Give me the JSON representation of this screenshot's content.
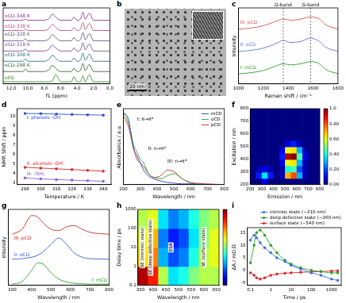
{
  "chart_data": [
    {
      "panel": "a",
      "type": "line",
      "x_label": "f1 (ppm)",
      "x": [
        13,
        12,
        11,
        10.6,
        10.3,
        10,
        9,
        8,
        7.4,
        7,
        6.6,
        6,
        5,
        4.7,
        4.4,
        4,
        3.6,
        3.3,
        3,
        2.5,
        2,
        1,
        0
      ],
      "xlim": [
        13,
        0
      ],
      "xticks": [
        {
          "value": 12,
          "label": "12.0"
        },
        {
          "value": 10,
          "label": "10.0"
        },
        {
          "value": 8,
          "label": "8.0"
        },
        {
          "value": 6,
          "label": "6.0"
        },
        {
          "value": 4,
          "label": "4.0"
        },
        {
          "value": 2,
          "label": "2.0"
        },
        {
          "value": 0,
          "label": "0.0"
        }
      ],
      "ylim": [
        -0.2,
        7.2
      ],
      "tick_labels": "x",
      "grid": false,
      "legend": "inline",
      "series": [
        {
          "name": "oCD-348 K",
          "color": "#8e3b8e",
          "values": [
            6,
            6,
            6,
            6,
            6.12,
            6,
            6,
            6,
            6.2,
            6.6,
            6.3,
            6,
            6,
            6,
            6.3,
            6,
            6.1,
            6.8,
            6.1,
            6.7,
            6,
            6,
            6
          ]
        },
        {
          "name": "oCD-338 K",
          "color": "#c4508a",
          "values": [
            5,
            5,
            5,
            5,
            5.15,
            5,
            5,
            5,
            5.2,
            5.6,
            5.3,
            5,
            5,
            5,
            5.3,
            5,
            5.1,
            5.8,
            5.1,
            5.7,
            5,
            5,
            5
          ]
        },
        {
          "name": "oCD-328 K",
          "color": "#5d5d7a",
          "values": [
            4,
            4,
            4,
            4,
            4.18,
            4,
            4,
            4,
            4.2,
            4.6,
            4.3,
            4,
            4,
            4,
            4.3,
            4,
            4.1,
            4.8,
            4.1,
            4.7,
            4,
            4,
            4
          ]
        },
        {
          "name": "oCD-318 K",
          "color": "#7b4fa0",
          "values": [
            3,
            3,
            3,
            3,
            3.2,
            3,
            3,
            3,
            3.2,
            3.6,
            3.3,
            3,
            3,
            3,
            3.3,
            3,
            3.1,
            3.8,
            3.1,
            3.7,
            3,
            3,
            3
          ]
        },
        {
          "name": "oCD-308 K",
          "color": "#2f6f8f",
          "values": [
            2,
            2,
            2,
            2,
            2.22,
            2,
            2,
            2,
            2.2,
            2.6,
            2.3,
            2,
            2,
            2,
            2.3,
            2,
            2.1,
            2.8,
            2.1,
            2.7,
            2,
            2,
            2
          ]
        },
        {
          "name": "oCD-298 K",
          "color": "#3d6b2e",
          "values": [
            1,
            1,
            1,
            1,
            1.25,
            1,
            1,
            1,
            1.2,
            1.6,
            1.3,
            1,
            1,
            1,
            1.3,
            1,
            1.1,
            1.8,
            1.1,
            1.7,
            1,
            1,
            1
          ]
        },
        {
          "name": "oPD",
          "color": "#3a8d2c",
          "values": [
            0,
            0,
            0,
            0,
            0,
            0,
            0,
            0,
            0,
            0.1,
            0.7,
            0,
            0,
            0,
            0.5,
            0,
            0,
            0.6,
            0,
            0.7,
            0,
            0,
            0
          ]
        }
      ]
    },
    {
      "panel": "c",
      "type": "line",
      "x_label": "Raman shift / cm⁻¹",
      "y_label": "Intensity",
      "x": [
        1000,
        1100,
        1200,
        1300,
        1360,
        1420,
        1500,
        1580,
        1650,
        1700,
        1800
      ],
      "xlim": [
        1000,
        1800
      ],
      "xticks": [
        1000,
        1200,
        1400,
        1600,
        1800
      ],
      "ylim": [
        -0.4,
        3
      ],
      "tick_labels": "x",
      "grid": false,
      "legend": "inline",
      "vlines": [
        {
          "x": 1360,
          "label": "D-band"
        },
        {
          "x": 1580,
          "label": "G-band"
        }
      ],
      "series": [
        {
          "name": "III: pCD",
          "color": "#d9534f",
          "values": [
            2.05,
            2.1,
            2.2,
            2.4,
            2.5,
            2.45,
            2.5,
            2.6,
            2.5,
            2.25,
            2.05
          ]
        },
        {
          "name": "II: oCD",
          "color": "#5b7bd5",
          "values": [
            1.05,
            1.1,
            1.2,
            1.4,
            1.55,
            1.45,
            1.5,
            1.65,
            1.5,
            1.25,
            1.05
          ]
        },
        {
          "name": "I: mCD",
          "color": "#2ca02c",
          "values": [
            0.05,
            0.1,
            0.2,
            0.4,
            0.5,
            0.45,
            0.5,
            0.6,
            0.5,
            0.25,
            0.05
          ]
        }
      ]
    },
    {
      "panel": "d",
      "type": "line",
      "x_label": "Temperature / K",
      "y_label": "NMR Shift / ppm",
      "x": [
        298,
        308,
        318,
        328,
        338,
        348
      ],
      "xlim": [
        293,
        353
      ],
      "xticks": [
        298,
        308,
        318,
        328,
        338,
        348
      ],
      "ylim": [
        2.8,
        10.8
      ],
      "yticks": [
        3,
        4,
        5,
        6,
        7,
        8,
        9,
        10
      ],
      "grid": false,
      "legend": "inline",
      "marker": "circle",
      "line_style": "solid",
      "series": [
        {
          "name": "I: phenols -OH",
          "color": "#2a4bd7",
          "values": [
            10.3,
            10.27,
            10.23,
            10.19,
            10.15,
            10.12
          ]
        },
        {
          "name": "II: alcohols -OH",
          "color": "#d62728",
          "values": [
            4.62,
            4.54,
            4.46,
            4.38,
            4.3,
            4.22
          ]
        },
        {
          "name": "III: -NH₂",
          "color": "#8a5cd6",
          "values": [
            3.5,
            3.4,
            3.33,
            3.27,
            3.21,
            3.15
          ]
        }
      ]
    },
    {
      "panel": "e",
      "type": "line",
      "x_label": "Wavelength / nm",
      "y_label": "Absorbance / a.u.",
      "x": [
        200,
        230,
        260,
        280,
        300,
        320,
        350,
        380,
        420,
        460,
        500,
        550,
        600,
        700,
        800
      ],
      "xlim": [
        200,
        800
      ],
      "xticks": [
        200,
        300,
        400,
        500,
        600,
        700,
        800
      ],
      "ylim": [
        0,
        1.05
      ],
      "tick_labels": "x",
      "grid": false,
      "legend": "upper right",
      "annotations": [
        {
          "text": "I: π→π*",
          "x": 330,
          "y": 0.9
        },
        {
          "text": "II: n→π*",
          "x": 400,
          "y": 0.5
        },
        {
          "text": "III: n→π*",
          "x": 520,
          "y": 0.32
        }
      ],
      "series": [
        {
          "name": "mCD",
          "color": "#1f3fbf",
          "values": [
            1.0,
            0.9,
            0.5,
            0.4,
            0.3,
            0.2,
            0.12,
            0.08,
            0.05,
            0.03,
            0.02,
            0.01,
            0.01,
            0,
            0
          ]
        },
        {
          "name": "oCD",
          "color": "#2ca02c",
          "values": [
            1.0,
            0.85,
            0.55,
            0.45,
            0.35,
            0.3,
            0.15,
            0.1,
            0.08,
            0.12,
            0.15,
            0.08,
            0.02,
            0,
            0
          ]
        },
        {
          "name": "pCD",
          "color": "#d62728",
          "values": [
            0.95,
            0.8,
            0.5,
            0.35,
            0.3,
            0.25,
            0.15,
            0.1,
            0.12,
            0.2,
            0.18,
            0.08,
            0.03,
            0.01,
            0
          ]
        }
      ]
    },
    {
      "panel": "f",
      "type": "heatmap",
      "x_label": "Emission / nm",
      "y_label": "Excitation / nm",
      "xlim": [
        200,
        800
      ],
      "xticks": [
        200,
        300,
        400,
        500,
        600,
        700,
        800
      ],
      "ylim": [
        200,
        800
      ],
      "yticks": [
        200,
        300,
        400,
        500,
        600,
        700,
        800
      ],
      "x_edges": [
        200,
        250,
        300,
        350,
        400,
        450,
        500,
        550,
        600,
        650,
        700,
        750,
        800
      ],
      "y_edges": [
        200,
        250,
        300,
        350,
        400,
        450,
        500,
        550,
        600,
        650,
        700,
        750,
        800
      ],
      "cells": [
        [
          0,
          0,
          0.1,
          0,
          0,
          0,
          0,
          0,
          0,
          0,
          0,
          0
        ],
        [
          0,
          0.15,
          0.35,
          0.15,
          0,
          0.05,
          0.7,
          0.8,
          0.3,
          0.05,
          0,
          0
        ],
        [
          0,
          0.05,
          0.1,
          0.05,
          0,
          0.05,
          0.4,
          0.45,
          0.2,
          0.05,
          0,
          0
        ],
        [
          0,
          0,
          0,
          0,
          0,
          0.1,
          0.6,
          0.65,
          0.3,
          0.05,
          0,
          0
        ],
        [
          0,
          0,
          0,
          0,
          0,
          0.15,
          0.95,
          1,
          0.45,
          0.1,
          0,
          0
        ],
        [
          0,
          0,
          0,
          0,
          0,
          0.1,
          0.6,
          0.65,
          0.3,
          0.05,
          0,
          0
        ],
        [
          0,
          0,
          0,
          0,
          0,
          0,
          0.1,
          0.15,
          0.05,
          0,
          0,
          0
        ],
        [
          0,
          0,
          0,
          0,
          0,
          0,
          0,
          0,
          0,
          0,
          0,
          0
        ],
        [
          0,
          0,
          0,
          0,
          0,
          0,
          0,
          0,
          0,
          0,
          0,
          0
        ],
        [
          0,
          0,
          0,
          0,
          0,
          0,
          0,
          0,
          0,
          0,
          0,
          0
        ],
        [
          0,
          0,
          0,
          0,
          0,
          0,
          0,
          0,
          0,
          0,
          0,
          0
        ],
        [
          0,
          0,
          0,
          0,
          0,
          0,
          0,
          0,
          0,
          0,
          0,
          0
        ]
      ],
      "zlim": [
        0,
        1
      ],
      "colorbar_ticks": [
        {
          "value": 0,
          "label": "0.00"
        },
        {
          "value": 0.2,
          "label": "0.20"
        },
        {
          "value": 0.4,
          "label": "0.40"
        },
        {
          "value": 0.6,
          "label": "0.60"
        },
        {
          "value": 0.8,
          "label": "0.80"
        },
        {
          "value": 1,
          "label": "1.0"
        }
      ]
    },
    {
      "panel": "g",
      "type": "line",
      "x_label": "Wavelength / nm",
      "y_label": "Intensity",
      "x": [
        300,
        350,
        400,
        430,
        460,
        500,
        540,
        580,
        620,
        660,
        700,
        800
      ],
      "xlim": [
        280,
        800
      ],
      "xticks": [
        300,
        400,
        500,
        600,
        700,
        800
      ],
      "ylim": [
        -0.05,
        3
      ],
      "tick_labels": "x",
      "grid": false,
      "legend": "inline",
      "series": [
        {
          "name": "III: pCD",
          "color": "#d62728",
          "values": [
            2,
            2.2,
            2.75,
            2.7,
            2.45,
            2.2,
            2.15,
            2.3,
            2.35,
            2.2,
            2.08,
            2
          ]
        },
        {
          "name": "II: oCD",
          "color": "#3b5bd5",
          "values": [
            1,
            1.02,
            1.08,
            1.15,
            1.3,
            1.6,
            1.85,
            1.6,
            1.25,
            1.08,
            1.02,
            1
          ]
        },
        {
          "name": "I: mCD",
          "color": "#2ca02c",
          "values": [
            0,
            0.1,
            0.55,
            0.85,
            0.8,
            0.45,
            0.2,
            0.08,
            0.03,
            0.01,
            0,
            0
          ]
        }
      ]
    },
    {
      "panel": "h",
      "type": "heatmap",
      "log": "y",
      "x_label": "Wavelength / nm",
      "y_label": "Delay time / ps",
      "xlim": [
        340,
        660
      ],
      "xticks": [
        350,
        400,
        450,
        500,
        550,
        600,
        650
      ],
      "ylim": [
        0.1,
        1000
      ],
      "yticks": [
        0.1,
        1,
        10,
        100,
        1000
      ],
      "x_edges": [
        340,
        380,
        420,
        460,
        500,
        540,
        580,
        620,
        660
      ],
      "y_edges": [
        0.1,
        1,
        10,
        100,
        1000
      ],
      "cells": [
        [
          0.9,
          0.7,
          0.1,
          -0.3,
          -0.2,
          0,
          0.1,
          0.1
        ],
        [
          0.3,
          0.5,
          -0.4,
          -0.6,
          -0.5,
          -0.2,
          0.1,
          0.2
        ],
        [
          0.2,
          0.4,
          -0.5,
          -0.7,
          -0.6,
          -0.3,
          0,
          0.2
        ],
        [
          0.1,
          0.2,
          -0.3,
          -0.5,
          -0.4,
          -0.2,
          0,
          0.1
        ]
      ],
      "zlim": [
        -1,
        1
      ],
      "annotations": [
        {
          "text": "SE (intrinsic state)",
          "x": 358,
          "y": 10
        },
        {
          "text": "SE (deep defective state)",
          "x": 390,
          "y": 10
        },
        {
          "text": "ESA",
          "x": 470,
          "y": 10
        },
        {
          "text": "SE (surface state)",
          "x": 600,
          "y": 10
        }
      ]
    },
    {
      "panel": "i",
      "type": "scatter",
      "log": "x",
      "x_label": "Time / ps",
      "y_label": "ΔA / mO.D.",
      "x": [
        0.1,
        0.15,
        0.2,
        0.3,
        0.5,
        1,
        2,
        5,
        10,
        30,
        100,
        300,
        1000,
        2000
      ],
      "xlim": [
        0.07,
        3000
      ],
      "xticks": [
        0.1,
        1,
        10,
        100,
        1000
      ],
      "ylim": [
        -6,
        17
      ],
      "yticks": [
        -5,
        0,
        5,
        10,
        15
      ],
      "grid": false,
      "legend": "top",
      "marker": "circle",
      "line_style": "solid",
      "series": [
        {
          "name": "intrinsic state (~310 nm)",
          "color": "#3b6fd8",
          "values": [
            12,
            14,
            13,
            11,
            9,
            7,
            5,
            3.5,
            2,
            0.5,
            -1,
            -2,
            -3.5,
            -4
          ]
        },
        {
          "name": "deep defective state (~360 nm)",
          "color": "#2ca02c",
          "values": [
            3,
            10,
            15,
            16,
            14,
            10,
            7,
            4,
            2.5,
            1,
            0,
            -0.5,
            -1,
            -1
          ]
        },
        {
          "name": "surface state (~540 nm)",
          "color": "#d62728",
          "values": [
            -1,
            -2,
            -3,
            -3.5,
            -3,
            -2,
            -1.5,
            -1.2,
            -1,
            -0.8,
            -0.6,
            -0.5,
            -0.3,
            -0.2
          ]
        }
      ]
    }
  ],
  "image_panel": {
    "panel": "b",
    "scale_bar": "20 nm"
  }
}
